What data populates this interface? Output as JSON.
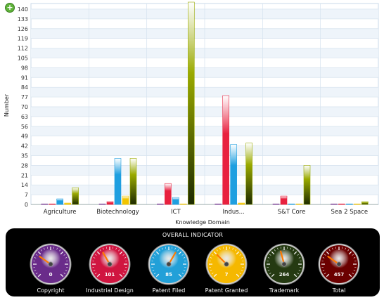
{
  "chart_data": {
    "type": "bar",
    "title": "",
    "xlabel": "Knowledge Domain",
    "ylabel": "Number",
    "ylim": [
      0,
      140
    ],
    "yticks": [
      "0",
      "7",
      "14",
      "21",
      "28",
      "35",
      "42",
      "49",
      "56",
      "63",
      "70",
      "77",
      "84",
      "91",
      "98",
      "105",
      "112",
      "119",
      "126",
      "133",
      "140"
    ],
    "categories": [
      "Agriculture",
      "Biotechnology",
      "ICT",
      "Indus...",
      "S&T Core",
      "Sea 2 Space"
    ],
    "grid": true,
    "legend": "none",
    "series": [
      {
        "color": "#7d3c98",
        "values": [
          0,
          0,
          0,
          0,
          0,
          0
        ]
      },
      {
        "color": "#e8213f",
        "values": [
          0,
          2,
          15,
          78,
          6,
          0
        ]
      },
      {
        "color": "#1f9fe0",
        "values": [
          4,
          33,
          5,
          43,
          0,
          0
        ]
      },
      {
        "color": "#f2c500",
        "values": [
          1,
          6,
          0,
          1,
          0,
          0
        ]
      },
      {
        "color": "#9aaa00",
        "values": [
          12,
          33,
          145,
          44,
          28,
          2
        ]
      }
    ]
  },
  "panel": {
    "title": "OVERALL INDICATOR",
    "gauges": [
      {
        "label": "Copyright",
        "value": "0",
        "color": "#6a2c8a"
      },
      {
        "label": "Industrial Design",
        "value": "101",
        "color": "#d01540"
      },
      {
        "label": "Patent Filed",
        "value": "85",
        "color": "#22a0d8"
      },
      {
        "label": "Patent Granted",
        "value": "7",
        "color": "#f5b800"
      },
      {
        "label": "Trademark",
        "value": "264",
        "color": "#253a12"
      },
      {
        "label": "Total",
        "value": "457",
        "color": "#6b0000"
      }
    ]
  },
  "zoom_icon": "plus-icon"
}
